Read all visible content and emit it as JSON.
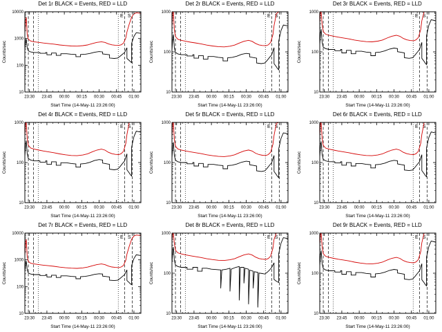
{
  "legend": {
    "black": "Events",
    "red": "LLD"
  },
  "colors": {
    "events": "#000000",
    "lld": "#d40000",
    "background": "#ffffff"
  },
  "axes": {
    "xlabel": "Start Time (14-May-11 23:26:00)",
    "ylabel": "Counts/sec"
  },
  "x_axis": {
    "range": [
      0,
      100
    ],
    "ticks": [
      {
        "x": 4,
        "label": "23:30"
      },
      {
        "x": 19,
        "label": "23:45"
      },
      {
        "x": 34,
        "label": "00:00"
      },
      {
        "x": 49,
        "label": "00:15"
      },
      {
        "x": 64,
        "label": "00:30"
      },
      {
        "x": 79,
        "label": "00:45"
      },
      {
        "x": 94,
        "label": "01:00"
      }
    ]
  },
  "shared": {
    "vlines": [
      {
        "x": 3,
        "style": "dashed"
      },
      {
        "x": 7.5,
        "style": "dashed"
      },
      {
        "x": 11.5,
        "style": "dotted"
      },
      {
        "x": 80.5,
        "style": "dotted"
      },
      {
        "x": 86,
        "style": "dashed"
      },
      {
        "x": 92.5,
        "style": "dashed"
      }
    ],
    "letters": [
      {
        "x": 83.5,
        "t": "E"
      },
      {
        "x": 90,
        "t": "S"
      }
    ],
    "red_shape": [
      [
        0,
        2.2
      ],
      [
        0.7,
        7
      ],
      [
        1.2,
        9
      ],
      [
        2,
        2.0
      ],
      [
        3,
        1.35
      ],
      [
        5,
        1.15
      ],
      [
        8,
        1.08
      ],
      [
        12,
        1.02
      ],
      [
        16,
        0.97
      ],
      [
        20,
        0.93
      ],
      [
        25,
        0.88
      ],
      [
        30,
        0.82
      ],
      [
        35,
        0.78
      ],
      [
        40,
        0.75
      ],
      [
        45,
        0.74
      ],
      [
        50,
        0.77
      ],
      [
        54,
        0.82
      ],
      [
        58,
        0.92
      ],
      [
        62,
        1.02
      ],
      [
        66,
        1.08
      ],
      [
        69,
        1.02
      ],
      [
        72,
        0.9
      ],
      [
        75,
        0.83
      ],
      [
        78,
        0.8
      ],
      [
        81,
        0.79
      ],
      [
        83,
        0.83
      ],
      [
        85,
        0.95
      ],
      [
        87,
        1.5
      ],
      [
        88,
        2.5
      ],
      [
        90,
        5
      ],
      [
        92,
        9
      ],
      [
        94,
        12
      ],
      [
        96,
        13
      ],
      [
        100,
        12.5
      ]
    ],
    "black_shape": [
      [
        0,
        1.3
      ],
      [
        0.7,
        2.6
      ],
      [
        1.2,
        3.2
      ],
      [
        2,
        1.5
      ],
      [
        3,
        1.15
      ],
      [
        5,
        1.05
      ],
      [
        8,
        1.0
      ],
      [
        13,
        1.0
      ],
      [
        13,
        0.93
      ],
      [
        18,
        0.93
      ],
      [
        18,
        1.0
      ],
      [
        19,
        1.0
      ],
      [
        19,
        0.82
      ],
      [
        23,
        0.82
      ],
      [
        23,
        0.95
      ],
      [
        27,
        0.95
      ],
      [
        27,
        0.78
      ],
      [
        31,
        0.78
      ],
      [
        31,
        0.9
      ],
      [
        36,
        0.9
      ],
      [
        40,
        0.86
      ],
      [
        44,
        0.84
      ],
      [
        44,
        0.7
      ],
      [
        48,
        0.7
      ],
      [
        48,
        0.84
      ],
      [
        52,
        0.86
      ],
      [
        56,
        0.92
      ],
      [
        60,
        1.02
      ],
      [
        64,
        1.08
      ],
      [
        67,
        1.05
      ],
      [
        67,
        0.88
      ],
      [
        70,
        0.85
      ],
      [
        73,
        0.82
      ],
      [
        73,
        0.62
      ],
      [
        77,
        0.6
      ],
      [
        80,
        0.62
      ],
      [
        82,
        0.72
      ],
      [
        84,
        0.85
      ],
      [
        86,
        1.0
      ],
      [
        87,
        1.25
      ],
      [
        88,
        1.5
      ],
      [
        88,
        0.6
      ],
      [
        90,
        0.5
      ],
      [
        91,
        0.45
      ],
      [
        92,
        0.42
      ],
      [
        92,
        2.2
      ],
      [
        94,
        4
      ],
      [
        96,
        5.5
      ],
      [
        100,
        5.2
      ]
    ]
  },
  "chart_data": [
    {
      "type": "line",
      "title": "Det 1r BLACK = Events, RED = LLD",
      "ylim": [
        10,
        10000
      ],
      "yticks": [
        10,
        100,
        1000,
        10000
      ],
      "red_base": 700,
      "black_base": 300,
      "series": [
        {
          "name": "Events"
        },
        {
          "name": "LLD"
        }
      ]
    },
    {
      "type": "line",
      "title": "Det 2r BLACK = Events, RED = LLD",
      "ylim": [
        10,
        1000
      ],
      "yticks": [
        10,
        100,
        1000
      ],
      "red_base": 180,
      "black_base": 85,
      "series": [
        {
          "name": "Events"
        },
        {
          "name": "LLD"
        }
      ]
    },
    {
      "type": "line",
      "title": "Det 3r BLACK = Events, RED = LLD",
      "ylim": [
        10,
        1000
      ],
      "yticks": [
        10,
        100,
        1000
      ],
      "red_base": 240,
      "black_base": 115,
      "series": [
        {
          "name": "Events"
        },
        {
          "name": "LLD"
        }
      ]
    },
    {
      "type": "line",
      "title": "Det 4r BLACK = Events, RED = LLD",
      "ylim": [
        10,
        1000
      ],
      "yticks": [
        10,
        100,
        1000
      ],
      "red_base": 200,
      "black_base": 110,
      "series": [
        {
          "name": "Events"
        },
        {
          "name": "LLD"
        }
      ]
    },
    {
      "type": "line",
      "title": "Det 5r BLACK = Events, RED = LLD",
      "ylim": [
        10,
        1000
      ],
      "yticks": [
        10,
        100,
        1000
      ],
      "red_base": 190,
      "black_base": 100,
      "series": [
        {
          "name": "Events"
        },
        {
          "name": "LLD"
        }
      ]
    },
    {
      "type": "line",
      "title": "Det 6r BLACK = Events, RED = LLD",
      "ylim": [
        10,
        1000
      ],
      "yticks": [
        10,
        100,
        1000
      ],
      "red_base": 200,
      "black_base": 105,
      "series": [
        {
          "name": "Events"
        },
        {
          "name": "LLD"
        }
      ]
    },
    {
      "type": "line",
      "title": "Det 7r BLACK = Events, RED = LLD",
      "ylim": [
        10,
        10000
      ],
      "yticks": [
        10,
        100,
        1000,
        10000
      ],
      "red_base": 650,
      "black_base": 280,
      "series": [
        {
          "name": "Events"
        },
        {
          "name": "LLD"
        }
      ]
    },
    {
      "type": "line",
      "title": "Det 8r BLACK = Events, RED = LLD",
      "ylim": [
        10,
        1000
      ],
      "yticks": [
        10,
        100,
        1000
      ],
      "red_base": 280,
      "black_base": 140,
      "black_shape": [
        [
          0,
          1.3
        ],
        [
          0.7,
          2.6
        ],
        [
          1.2,
          3.2
        ],
        [
          2,
          1.5
        ],
        [
          3,
          1.15
        ],
        [
          5,
          1.05
        ],
        [
          8,
          1.0
        ],
        [
          13,
          1.0
        ],
        [
          13,
          0.9
        ],
        [
          18,
          0.9
        ],
        [
          18,
          1.0
        ],
        [
          22,
          1.0
        ],
        [
          22,
          0.8
        ],
        [
          26,
          0.8
        ],
        [
          26,
          0.95
        ],
        [
          30,
          0.95
        ],
        [
          34,
          0.9
        ],
        [
          38,
          0.88
        ],
        [
          42,
          0.86
        ],
        [
          42,
          0.3
        ],
        [
          43,
          0.86
        ],
        [
          47,
          0.9
        ],
        [
          50,
          0.95
        ],
        [
          50,
          0.25
        ],
        [
          51,
          0.9
        ],
        [
          55,
          1.0
        ],
        [
          58,
          1.05
        ],
        [
          58,
          0.15
        ],
        [
          59,
          1.0
        ],
        [
          62,
          1.0
        ],
        [
          62,
          0.4
        ],
        [
          63,
          0.95
        ],
        [
          66,
          0.9
        ],
        [
          66,
          0.12
        ],
        [
          67,
          0.85
        ],
        [
          70,
          0.8
        ],
        [
          70,
          0.3
        ],
        [
          71,
          0.78
        ],
        [
          74,
          0.75
        ],
        [
          74,
          0.1
        ],
        [
          75,
          0.72
        ],
        [
          78,
          0.7
        ],
        [
          80,
          0.68
        ],
        [
          82,
          0.75
        ],
        [
          84,
          0.85
        ],
        [
          86,
          1.0
        ],
        [
          88,
          1.3
        ],
        [
          88,
          0.5
        ],
        [
          90,
          0.45
        ],
        [
          92,
          0.42
        ],
        [
          92,
          2.2
        ],
        [
          94,
          4
        ],
        [
          96,
          5.5
        ],
        [
          100,
          5.2
        ]
      ],
      "series": [
        {
          "name": "Events"
        },
        {
          "name": "LLD"
        }
      ]
    },
    {
      "type": "line",
      "title": "Det 9r BLACK = Events, RED = LLD",
      "ylim": [
        10,
        1000
      ],
      "yticks": [
        10,
        100,
        1000
      ],
      "red_base": 230,
      "black_base": 115,
      "series": [
        {
          "name": "Events"
        },
        {
          "name": "LLD"
        }
      ]
    }
  ]
}
